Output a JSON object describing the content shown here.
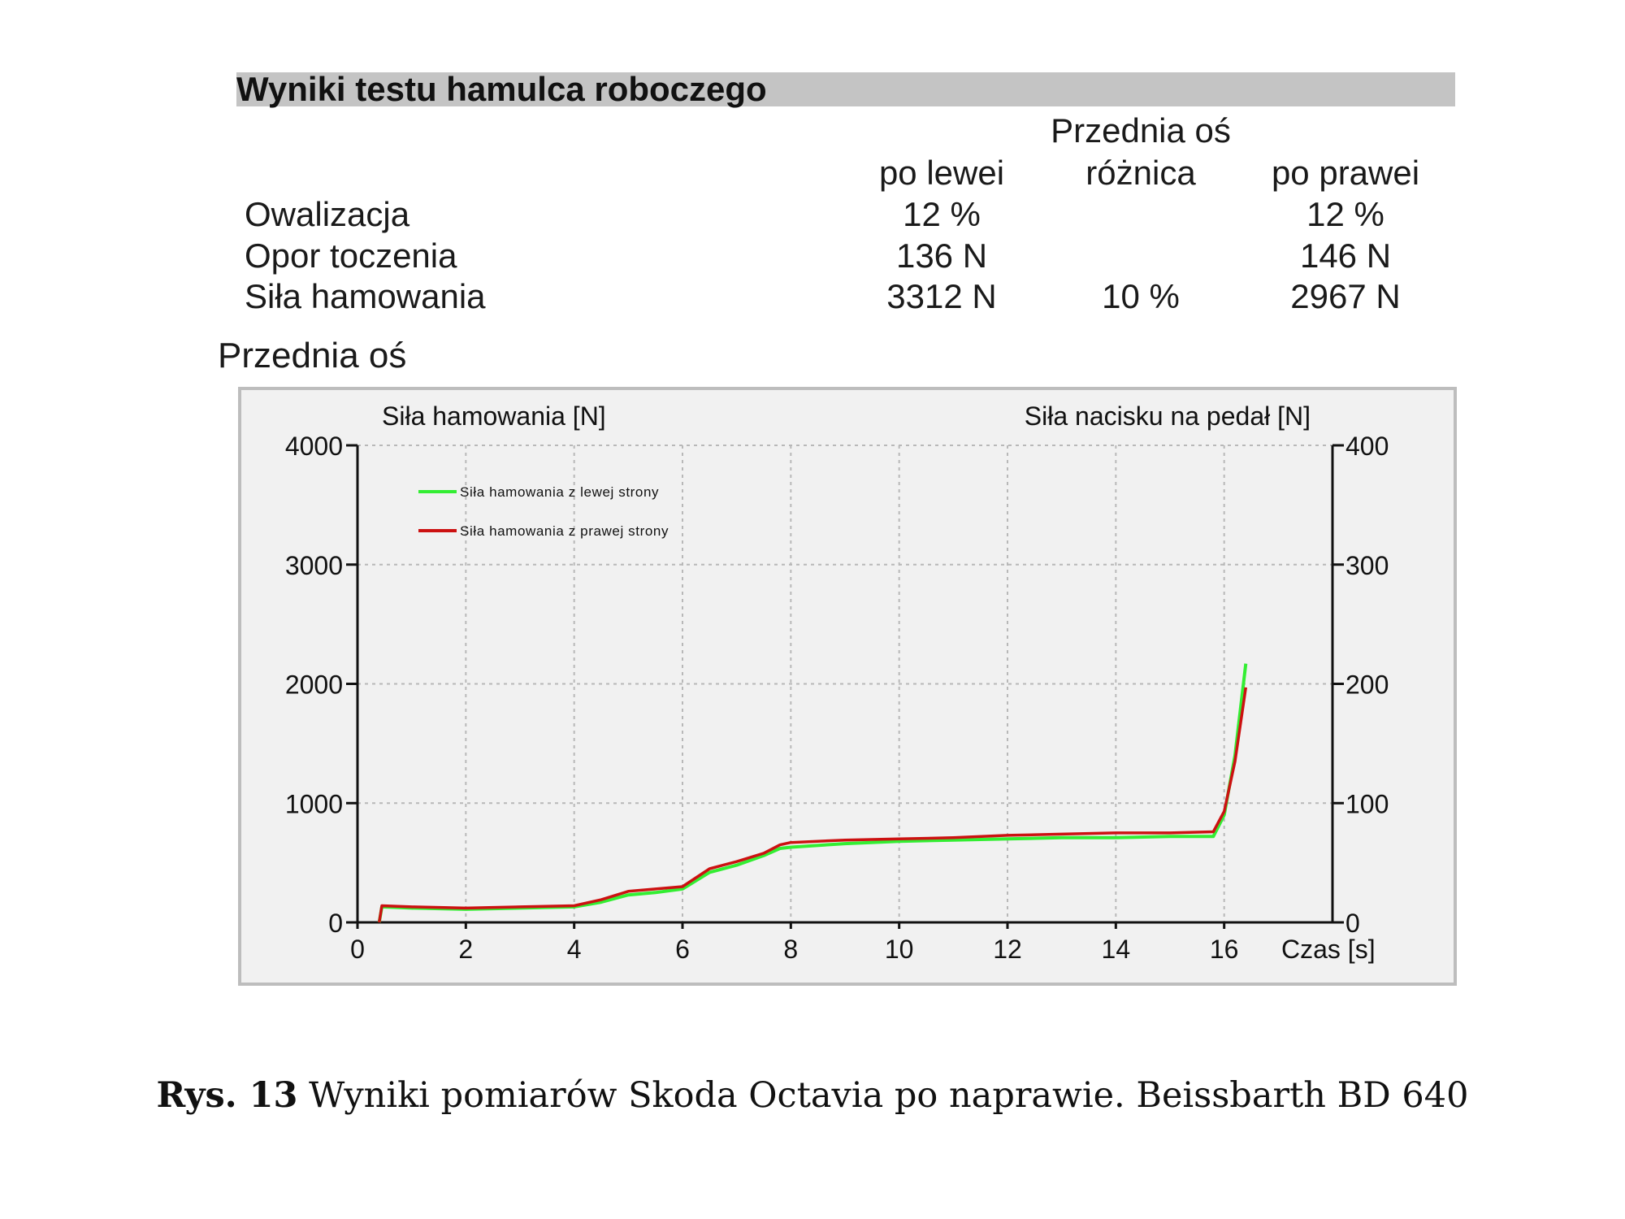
{
  "results_table": {
    "title": "Wyniki testu hamulca roboczego",
    "group_header": "Przednia oś",
    "columns": [
      "po lewei",
      "różnica",
      "po prawei"
    ],
    "rows": [
      {
        "label": "Owalizacja",
        "left": "12 %",
        "diff": "",
        "right": "12 %"
      },
      {
        "label": "Opor toczenia",
        "left": "136 N",
        "diff": "",
        "right": "146 N"
      },
      {
        "label": "Siła hamowania",
        "left": "3312 N",
        "diff": "10 %",
        "right": "2967 N"
      }
    ]
  },
  "section_title": "Przednia oś",
  "chart_data": {
    "type": "line",
    "ylabel_left": "Siła hamowania [N]",
    "ylabel_right": "Siła nacisku na pedał [N]",
    "xlabel": "Czas [s]",
    "xlim": [
      0,
      18
    ],
    "ylim_left": [
      0,
      4000
    ],
    "ylim_right": [
      0,
      400
    ],
    "x_ticks": [
      0,
      2,
      4,
      6,
      8,
      10,
      12,
      14,
      16
    ],
    "y_ticks_left": [
      0,
      1000,
      2000,
      3000,
      4000
    ],
    "y_ticks_right": [
      0,
      100,
      200,
      300,
      400
    ],
    "grid": true,
    "legend_position": "top-left",
    "series": [
      {
        "name": "Siła hamowania z lewej strony",
        "color": "#33ee33",
        "x": [
          0.4,
          0.45,
          1,
          2,
          3,
          4,
          4.5,
          5,
          5.5,
          6,
          6.5,
          7,
          7.5,
          7.8,
          8,
          9,
          10,
          11,
          12,
          13,
          14,
          15,
          15.8,
          16.0,
          16.2,
          16.4
        ],
        "y": [
          0,
          130,
          120,
          110,
          120,
          130,
          170,
          230,
          250,
          280,
          420,
          480,
          560,
          620,
          630,
          660,
          680,
          690,
          700,
          710,
          710,
          720,
          720,
          900,
          1400,
          2170
        ]
      },
      {
        "name": "Siła hamowania z prawej strony",
        "color": "#cc1111",
        "x": [
          0.4,
          0.45,
          1,
          2,
          3,
          4,
          4.5,
          5,
          5.5,
          6,
          6.5,
          7,
          7.5,
          7.8,
          8,
          9,
          10,
          11,
          12,
          13,
          14,
          15,
          15.8,
          16.0,
          16.2,
          16.4
        ],
        "y": [
          0,
          140,
          130,
          120,
          130,
          140,
          190,
          260,
          280,
          300,
          450,
          510,
          580,
          650,
          670,
          690,
          700,
          710,
          730,
          740,
          750,
          750,
          760,
          930,
          1350,
          1970
        ]
      }
    ]
  },
  "caption": {
    "label": "Rys. 13",
    "text": "Wyniki pomiarów Skoda Octavia po naprawie. Beissbarth BD 640"
  }
}
